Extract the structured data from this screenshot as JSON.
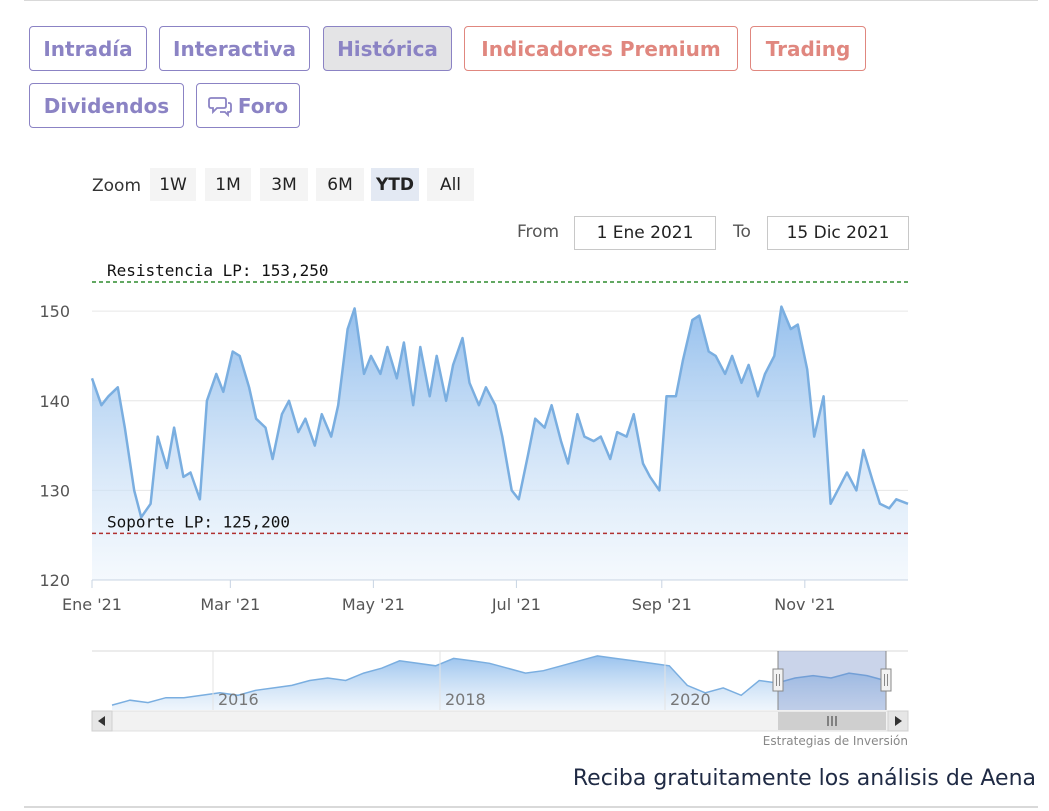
{
  "tabs": [
    {
      "label": "Intradía",
      "style": "purple",
      "active": false
    },
    {
      "label": "Interactiva",
      "style": "purple",
      "active": false
    },
    {
      "label": "Histórica",
      "style": "purple",
      "active": true
    },
    {
      "label": "Indicadores Premium",
      "style": "red",
      "active": false
    },
    {
      "label": "Trading",
      "style": "red",
      "active": false
    },
    {
      "label": "Dividendos",
      "style": "purple",
      "active": false
    },
    {
      "label": "Foro",
      "style": "purple",
      "active": false,
      "icon": "chat-bubbles-icon"
    }
  ],
  "zoom": {
    "label": "Zoom",
    "buttons": [
      "1W",
      "1M",
      "3M",
      "6M",
      "YTD",
      "All"
    ],
    "selected": "YTD"
  },
  "range": {
    "from_label": "From",
    "from_value": "1 Ene 2021",
    "to_label": "To",
    "to_value": "15 Dic 2021"
  },
  "chart_data": {
    "type": "area",
    "x_range": [
      "2021-01-01",
      "2021-12-15"
    ],
    "ylim": [
      120,
      153.25
    ],
    "yticks": [
      120,
      130,
      140,
      150
    ],
    "xticks": [
      {
        "label": "Ene '21",
        "date": "2021-01-01"
      },
      {
        "label": "Mar '21",
        "date": "2021-03-01"
      },
      {
        "label": "May '21",
        "date": "2021-05-01"
      },
      {
        "label": "Jul '21",
        "date": "2021-07-01"
      },
      {
        "label": "Sep '21",
        "date": "2021-09-01"
      },
      {
        "label": "Nov '21",
        "date": "2021-11-01"
      }
    ],
    "grid": true,
    "resistance": {
      "label": "Resistencia LP: 153,250",
      "value": 153.25,
      "color": "#2e8b2e"
    },
    "support": {
      "label": "Soporte LP: 125,200",
      "value": 125.2,
      "color": "#b03030"
    },
    "line_color": "#7aaee0",
    "fill_color": "#a9cdf0",
    "series": [
      {
        "x": [
          "2021-01-01",
          "2021-01-05",
          "2021-01-08",
          "2021-01-12",
          "2021-01-15",
          "2021-01-19",
          "2021-01-22",
          "2021-01-26",
          "2021-01-29",
          "2021-02-02",
          "2021-02-05",
          "2021-02-09",
          "2021-02-12",
          "2021-02-16",
          "2021-02-19",
          "2021-02-23",
          "2021-02-26",
          "2021-03-02",
          "2021-03-05",
          "2021-03-09",
          "2021-03-12",
          "2021-03-16",
          "2021-03-19",
          "2021-03-23",
          "2021-03-26",
          "2021-03-30",
          "2021-04-02",
          "2021-04-06",
          "2021-04-09",
          "2021-04-13",
          "2021-04-16",
          "2021-04-20",
          "2021-04-23",
          "2021-04-27",
          "2021-04-30",
          "2021-05-04",
          "2021-05-07",
          "2021-05-11",
          "2021-05-14",
          "2021-05-18",
          "2021-05-21",
          "2021-05-25",
          "2021-05-28",
          "2021-06-01",
          "2021-06-04",
          "2021-06-08",
          "2021-06-11",
          "2021-06-15",
          "2021-06-18",
          "2021-06-22",
          "2021-06-25",
          "2021-06-29",
          "2021-07-02",
          "2021-07-06",
          "2021-07-09",
          "2021-07-13",
          "2021-07-16",
          "2021-07-20",
          "2021-07-23",
          "2021-07-27",
          "2021-07-30",
          "2021-08-03",
          "2021-08-06",
          "2021-08-10",
          "2021-08-13",
          "2021-08-17",
          "2021-08-20",
          "2021-08-24",
          "2021-08-27",
          "2021-08-31",
          "2021-09-03",
          "2021-09-07",
          "2021-09-10",
          "2021-09-14",
          "2021-09-17",
          "2021-09-21",
          "2021-09-24",
          "2021-09-28",
          "2021-10-01",
          "2021-10-05",
          "2021-10-08",
          "2021-10-12",
          "2021-10-15",
          "2021-10-19",
          "2021-10-22",
          "2021-10-26",
          "2021-10-29",
          "2021-11-02",
          "2021-11-05",
          "2021-11-09",
          "2021-11-12",
          "2021-11-16",
          "2021-11-19",
          "2021-11-23",
          "2021-11-26",
          "2021-11-30",
          "2021-12-03",
          "2021-12-07",
          "2021-12-10",
          "2021-12-15"
        ],
        "y": [
          142.5,
          139.5,
          140.5,
          141.5,
          137.0,
          130.0,
          127.0,
          128.5,
          136.0,
          132.5,
          137.0,
          131.5,
          132.0,
          129.0,
          140.0,
          143.0,
          141.0,
          145.5,
          145.0,
          141.5,
          138.0,
          137.0,
          133.5,
          138.5,
          140.0,
          136.5,
          138.0,
          135.0,
          138.5,
          136.0,
          139.5,
          148.0,
          150.3,
          143.0,
          145.0,
          143.0,
          146.0,
          142.5,
          146.5,
          139.5,
          146.0,
          140.5,
          145.0,
          140.0,
          144.0,
          147.0,
          142.0,
          139.5,
          141.5,
          139.5,
          136.0,
          130.0,
          129.0,
          134.0,
          138.0,
          137.0,
          139.5,
          135.5,
          133.0,
          138.5,
          136.0,
          135.5,
          136.0,
          133.5,
          136.5,
          136.0,
          138.5,
          133.0,
          131.5,
          130.0,
          140.5,
          140.5,
          144.5,
          149.0,
          149.5,
          145.5,
          145.0,
          143.0,
          145.0,
          142.0,
          144.0,
          140.5,
          143.0,
          145.0,
          150.5,
          148.0,
          148.5,
          143.5,
          136.0,
          140.5,
          128.5,
          130.5,
          132.0,
          130.0,
          134.5,
          131.0,
          128.5,
          128.0,
          129.0,
          128.5
        ]
      }
    ]
  },
  "navigator": {
    "year_labels": [
      "2016",
      "2018",
      "2020"
    ],
    "series_y": [
      120,
      122,
      121,
      123,
      123,
      124,
      125,
      124,
      126,
      127,
      128,
      130,
      131,
      130,
      133,
      135,
      138,
      137,
      136,
      139,
      138,
      137,
      135,
      133,
      134,
      136,
      138,
      140,
      139,
      138,
      137,
      136,
      128,
      125,
      127,
      124,
      130,
      129,
      131,
      132,
      131,
      133,
      132,
      130
    ]
  },
  "credit": "Estrategias de Inversión",
  "cta": "Reciba gratuitamente los análisis de Aena"
}
